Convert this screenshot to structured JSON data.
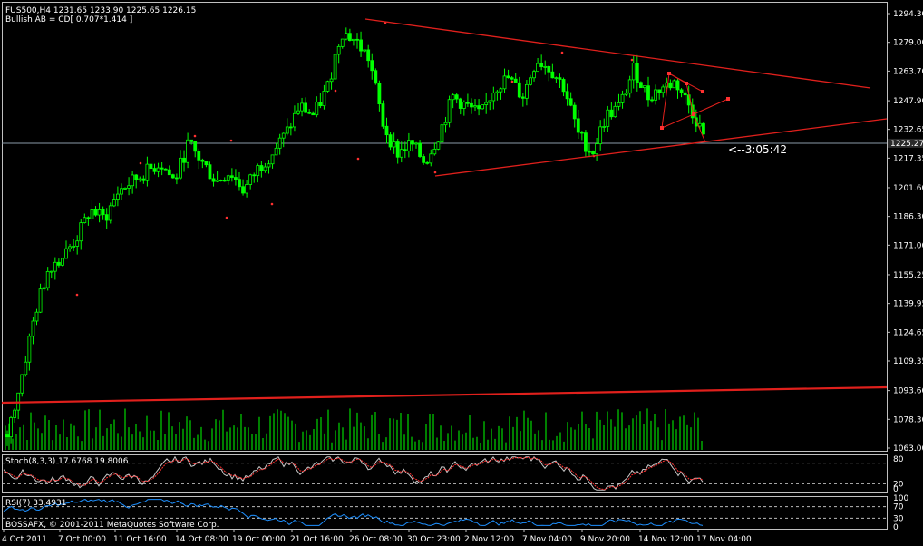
{
  "header": {
    "symbol_line": "FUS500,H4  1231.65 1233.90 1225.65 1226.15",
    "pattern_line": "Bullish AB = CD[ 0.707*1.414 ]"
  },
  "price_axis": {
    "labels": [
      "1294.30",
      "1279.00",
      "1263.70",
      "1247.90",
      "1232.65",
      "1217.35",
      "1201.60",
      "1186.30",
      "1171.00",
      "1155.25",
      "1139.95",
      "1124.65",
      "1109.35",
      "1093.60",
      "1078.30",
      "1063.00"
    ],
    "current_price": "1225.27",
    "min": 1063.0,
    "max": 1294.3
  },
  "countdown": "<--3:05:42",
  "stoch": {
    "label": "Stoch(8,3,3) 17.6768 19.8006",
    "levels": [
      "80",
      "20",
      "0"
    ]
  },
  "rsi": {
    "label": "RSI(7) 33.4931",
    "levels": [
      "100",
      "70",
      "30",
      "0"
    ]
  },
  "copyright": "BOSSAFX, © 2001-2011 MetaQuotes Software Corp.",
  "time_axis": [
    "4 Oct 2011",
    "7 Oct 00:00",
    "11 Oct 16:00",
    "14 Oct 08:00",
    "19 Oct 00:00",
    "21 Oct 16:00",
    "26 Oct 08:00",
    "30 Oct 23:00",
    "2 Nov 12:00",
    "7 Nov 04:00",
    "9 Nov 20:00",
    "14 Nov 12:00",
    "17 Nov 04:00"
  ],
  "colors": {
    "bull": "#00ff00",
    "bear": "#00ff00",
    "trend": "#e0201c",
    "grid": "#ffffff",
    "stoch_main": "#c8c8c8",
    "stoch_signal": "#ff3030",
    "rsi": "#1e90ff"
  },
  "chart_data": {
    "type": "candlestick",
    "price_range": [
      1063.0,
      1294.3
    ],
    "close_path": [
      1070,
      1100,
      1135,
      1160,
      1165,
      1175,
      1190,
      1185,
      1200,
      1205,
      1210,
      1215,
      1205,
      1225,
      1215,
      1205,
      1210,
      1200,
      1212,
      1220,
      1230,
      1245,
      1240,
      1255,
      1285,
      1280,
      1270,
      1235,
      1220,
      1225,
      1215,
      1230,
      1250,
      1245,
      1240,
      1255,
      1260,
      1250,
      1270,
      1265,
      1255,
      1230,
      1220,
      1240,
      1245,
      1265,
      1250,
      1255,
      1258,
      1245,
      1230
    ]
  }
}
